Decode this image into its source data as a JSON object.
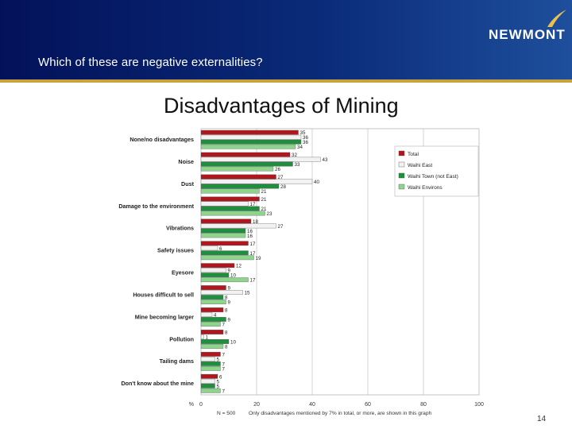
{
  "header": {
    "question": "Which of these are negative externalities?",
    "logo_text": "NEWMONT",
    "logo_mark": "®"
  },
  "page_number": "14",
  "colors": {
    "header_bg": "#0a2a78",
    "accent_rule": "#c8a33c",
    "total": "#b0161d",
    "waihi_east": "#f2f2f2",
    "waihi_town": "#1f8f3f",
    "waihi_environs": "#8ed48c"
  },
  "chart_data": {
    "type": "bar",
    "orientation": "horizontal",
    "title": "Disadvantages of Mining",
    "categories": [
      "None/no disadvantages",
      "Noise",
      "Dust",
      "Damage to the environment",
      "Vibrations",
      "Safety issues",
      "Eyesore",
      "Houses difficult to sell",
      "Mine becoming larger",
      "Pollution",
      "Tailing dams",
      "Don't know about the mine"
    ],
    "series": [
      {
        "name": "Total",
        "values": [
          35,
          32,
          27,
          21,
          18,
          17,
          12,
          9,
          8,
          8,
          7,
          6
        ]
      },
      {
        "name": "Waihi East",
        "values": [
          36,
          43,
          40,
          17,
          27,
          6,
          9,
          15,
          4,
          1,
          5,
          5
        ]
      },
      {
        "name": "Waihi Town (not East)",
        "values": [
          36,
          33,
          28,
          21,
          16,
          17,
          10,
          8,
          9,
          10,
          7,
          5
        ]
      },
      {
        "name": "Waihi Environs",
        "values": [
          34,
          26,
          21,
          23,
          16,
          19,
          17,
          9,
          7,
          8,
          7,
          7
        ]
      }
    ],
    "xlim": [
      0,
      100
    ],
    "xticks": [
      0,
      20,
      40,
      60,
      80,
      100
    ],
    "xlabel": "%",
    "grid": true,
    "legend_position": "upper-right",
    "footnote_n": "N = 500",
    "footnote": "Only disadvantages mentioned by 7% in total, or more, are shown in this graph"
  }
}
